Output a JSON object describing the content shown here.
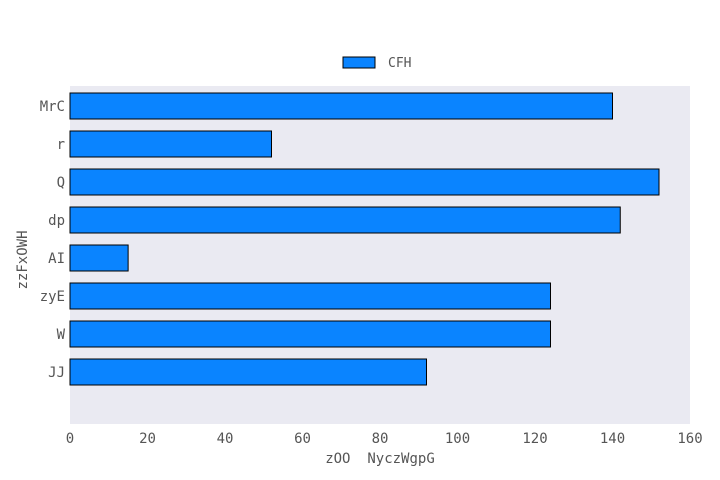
{
  "chart_data": {
    "type": "bar",
    "orientation": "horizontal",
    "categories": [
      "MrC",
      "r",
      "Q",
      "dp",
      "AI",
      "zyE",
      "W",
      "JJ"
    ],
    "series": [
      {
        "name": "CFH",
        "values": [
          140,
          52,
          152,
          142,
          15,
          124,
          124,
          92
        ],
        "color": "#0a84ff"
      }
    ],
    "xlabel": "zOO  NyczWgpG",
    "ylabel": "zzFxOWH",
    "xlim": [
      0,
      160
    ],
    "xticks": [
      0,
      20,
      40,
      60,
      80,
      100,
      120,
      140,
      160
    ],
    "grid": false,
    "plot_background": "#eaeaf2",
    "legend_position": "top-center"
  }
}
